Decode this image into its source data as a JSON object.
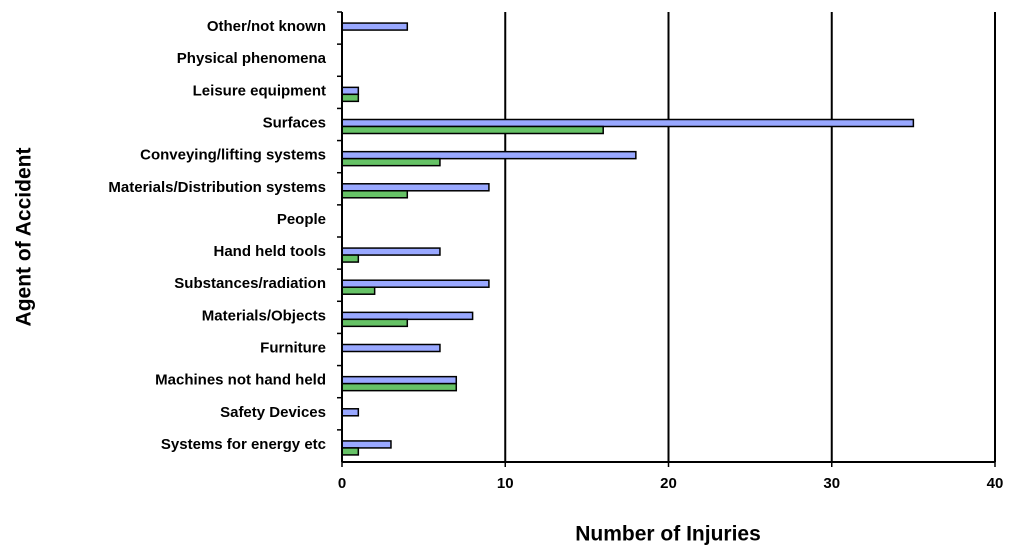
{
  "chart_data": {
    "type": "barh",
    "xlabel": "Number of Injuries",
    "ylabel": "Agent of Accident",
    "categories": [
      "Other/not known",
      "Physical phenomena",
      "Leisure equipment",
      "Surfaces",
      "Conveying/lifting systems",
      "Materials/Distribution systems",
      "People",
      "Hand held tools",
      "Substances/radiation",
      "Materials/Objects",
      "Furniture",
      "Machines not hand held",
      "Safety Devices",
      "Systems for energy etc"
    ],
    "series": [
      {
        "color": "#99a8ff",
        "values": [
          4,
          0,
          1,
          35,
          18,
          9,
          0,
          6,
          9,
          8,
          6,
          7,
          1,
          3
        ]
      },
      {
        "color": "#66c266",
        "values": [
          0,
          0,
          1,
          16,
          6,
          4,
          0,
          1,
          2,
          4,
          0,
          7,
          0,
          1
        ]
      }
    ],
    "xlim": [
      0,
      40
    ],
    "xticks": [
      0,
      10,
      20,
      30,
      40
    ],
    "grid": true
  }
}
